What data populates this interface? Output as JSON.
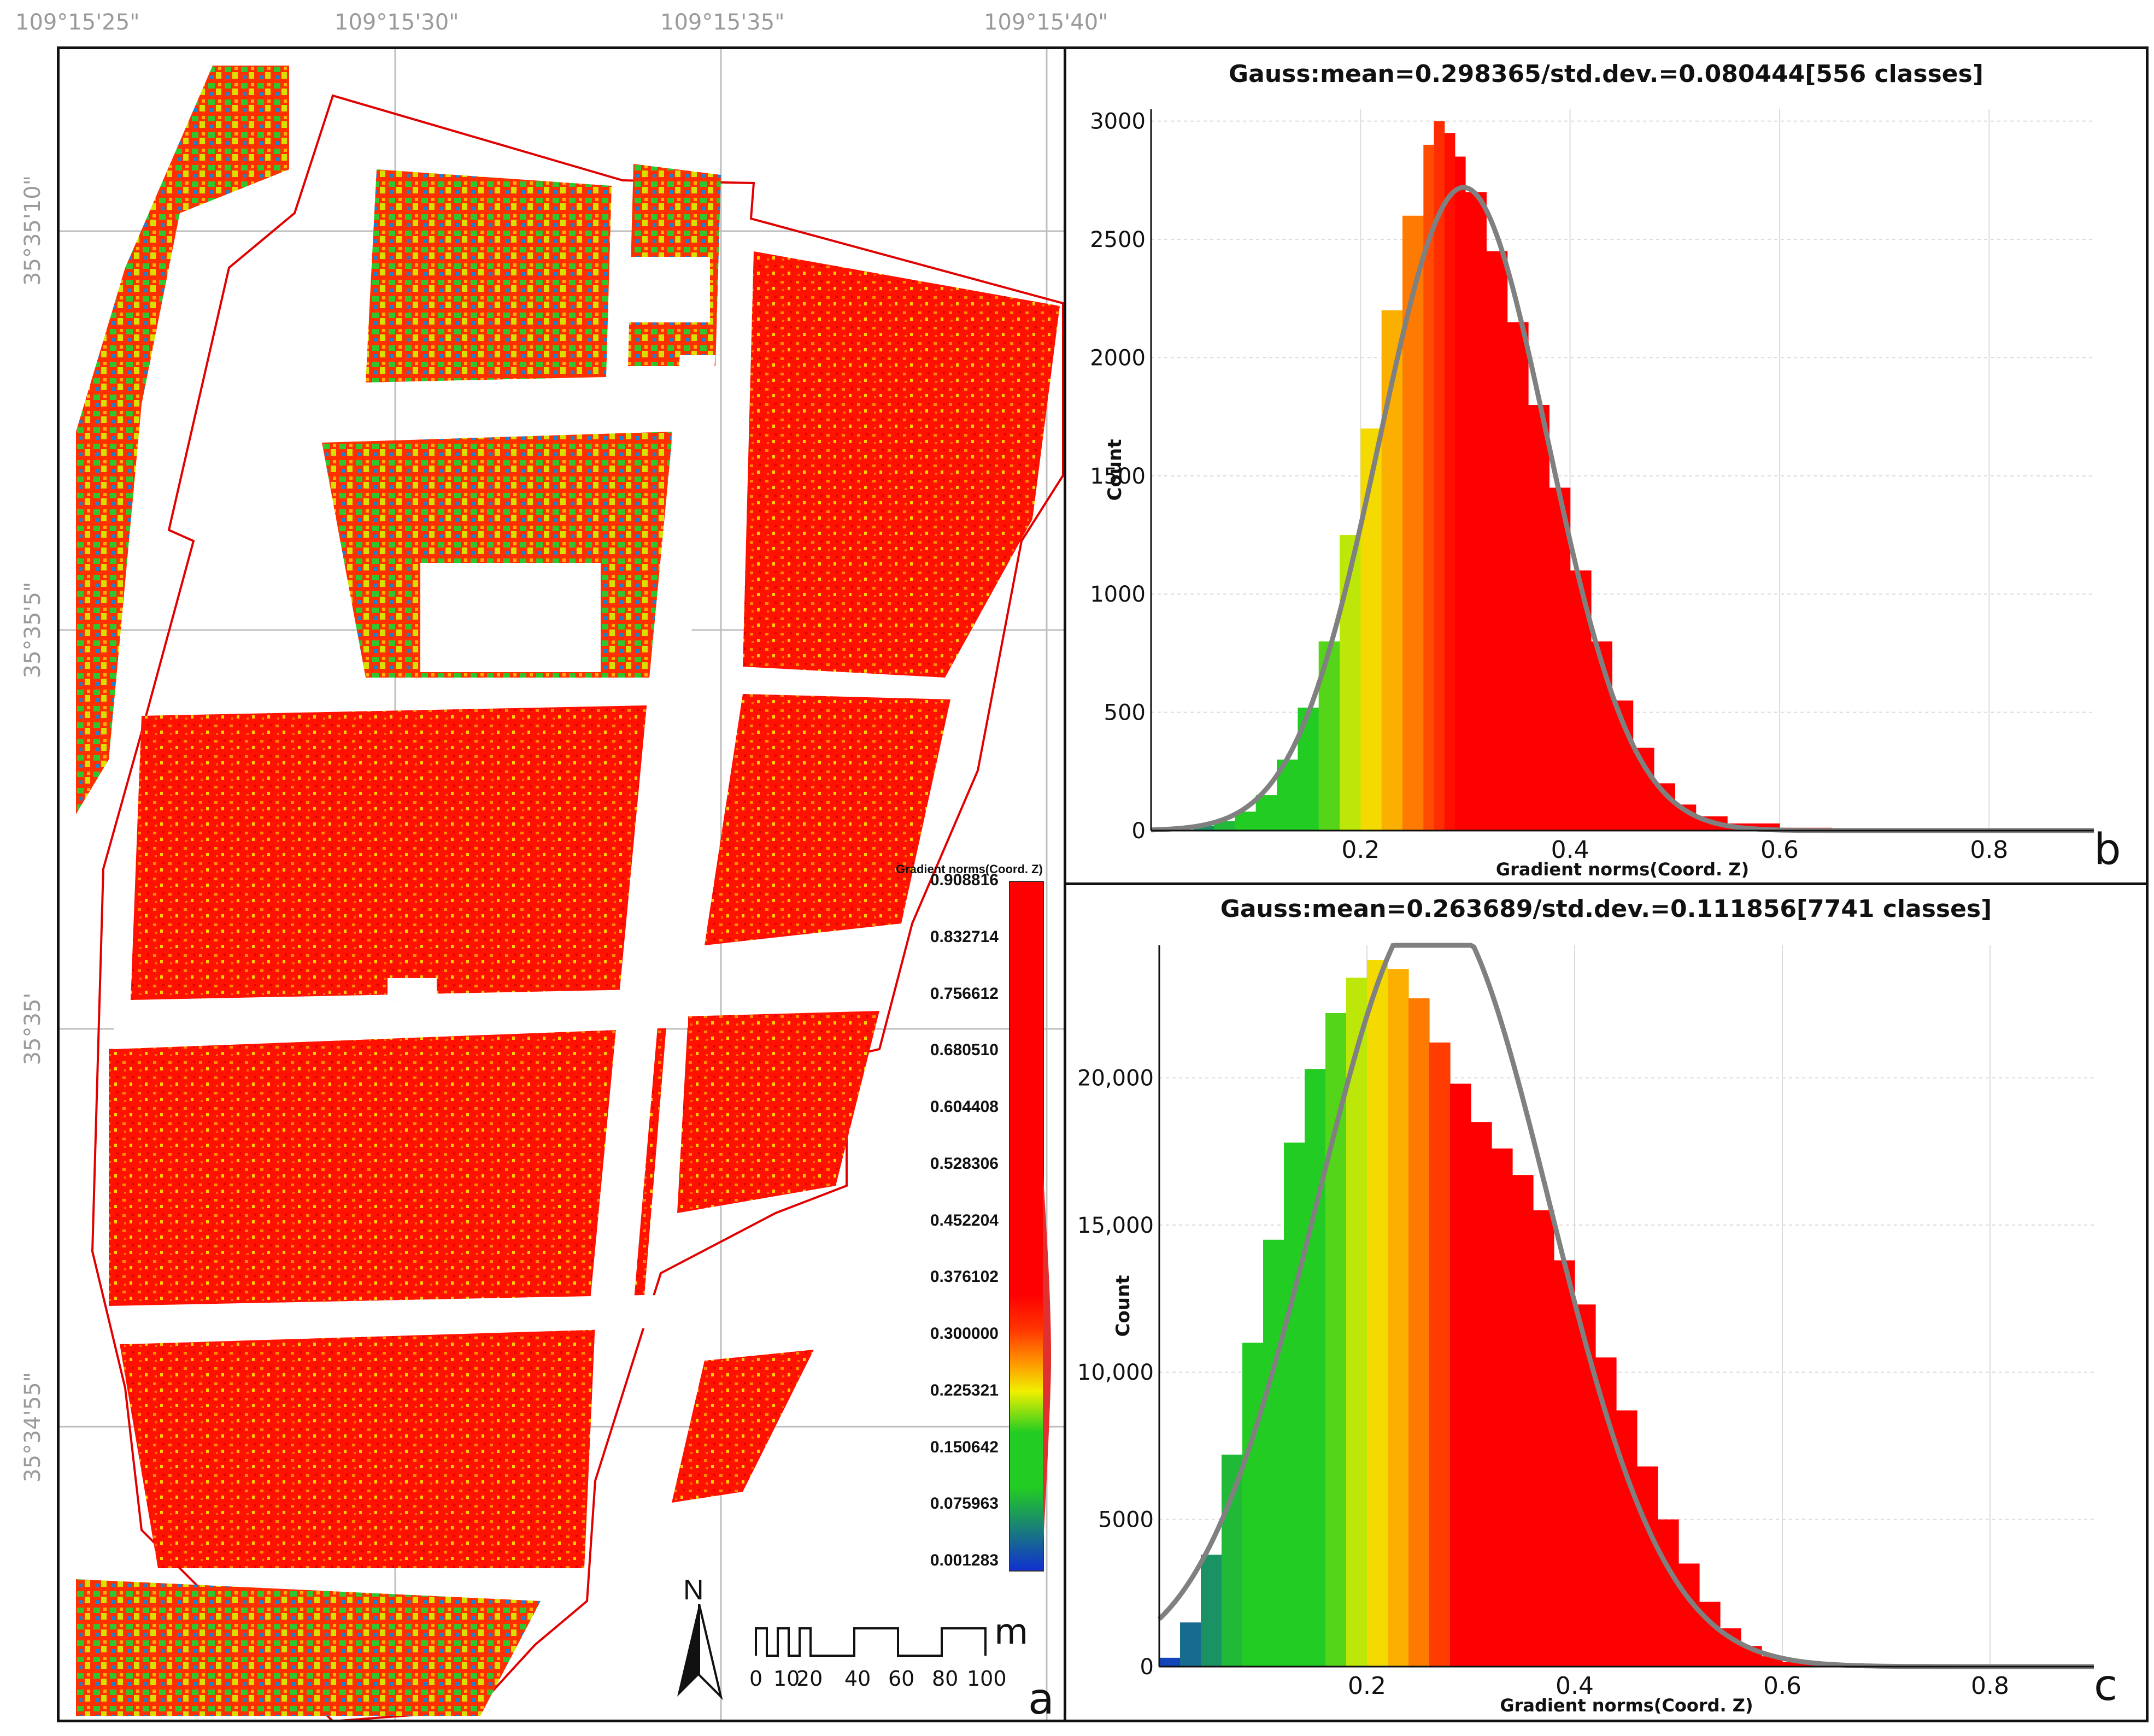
{
  "coords": {
    "longitudes": [
      "109°15'25\"",
      "109°15'30\"",
      "109°15'35\"",
      "109°15'40\""
    ],
    "latitudes": [
      "35°35'10\"",
      "35°35'5\"",
      "35°35'",
      "35°34'55\""
    ]
  },
  "map": {
    "panel_letter": "a",
    "north_label": "N",
    "legend": {
      "title": "Gradient norms(Coord. Z)",
      "values": [
        "0.908816",
        "0.832714",
        "0.756612",
        "0.680510",
        "0.604408",
        "0.528306",
        "0.452204",
        "0.376102",
        "0.300000",
        "0.225321",
        "0.150642",
        "0.075963",
        "0.001283"
      ]
    },
    "scale_bar": {
      "unit": "m",
      "labels": [
        "0",
        "10",
        "20",
        "40",
        "60",
        "80",
        "100"
      ]
    },
    "colors": {
      "low": "#1030d0",
      "mid_low": "#22cc22",
      "mid": "#f0f000",
      "mid_high": "#ff9900",
      "high": "#ff0000",
      "boundary": "#e00000"
    }
  },
  "chart_data": [
    {
      "type": "bar",
      "panel_letter": "b",
      "title": "Gauss:mean=0.298365/std.dev.=0.080444[556 classes]",
      "xlabel": "Gradient norms(Coord. Z)",
      "ylabel": "Count",
      "x_ticks": [
        "0.2",
        "0.4",
        "0.6",
        "0.8"
      ],
      "y_ticks": [
        "0",
        "500",
        "1000",
        "1500",
        "2000",
        "2500",
        "3000"
      ],
      "xlim": [
        0.0,
        0.9
      ],
      "ylim": [
        0,
        3050
      ],
      "gauss": {
        "mean": 0.298365,
        "std": 0.080444,
        "peak": 2720
      },
      "x": [
        0.04,
        0.06,
        0.08,
        0.1,
        0.12,
        0.14,
        0.16,
        0.18,
        0.2,
        0.22,
        0.24,
        0.26,
        0.27,
        0.28,
        0.29,
        0.3,
        0.32,
        0.34,
        0.36,
        0.38,
        0.4,
        0.42,
        0.44,
        0.46,
        0.48,
        0.5,
        0.52,
        0.55,
        0.6,
        0.65,
        0.7
      ],
      "values": [
        20,
        40,
        80,
        150,
        300,
        520,
        800,
        1250,
        1700,
        2200,
        2600,
        2900,
        3000,
        2950,
        2850,
        2700,
        2450,
        2150,
        1800,
        1450,
        1100,
        800,
        550,
        350,
        200,
        110,
        60,
        30,
        12,
        5,
        2
      ]
    },
    {
      "type": "bar",
      "panel_letter": "c",
      "title": "Gauss:mean=0.263689/std.dev.=0.111856[7741 classes]",
      "xlabel": "Gradient norms(Coord. Z)",
      "ylabel": "Count",
      "x_ticks": [
        "0.2",
        "0.4",
        "0.6",
        "0.8"
      ],
      "y_ticks": [
        "0",
        "5000",
        "10,000",
        "15,000",
        "20,000"
      ],
      "xlim": [
        0.0,
        0.9
      ],
      "ylim": [
        0,
        24500
      ],
      "gauss": {
        "mean": 0.263689,
        "std": 0.111856,
        "peak": 26000
      },
      "x": [
        0.0,
        0.02,
        0.04,
        0.06,
        0.08,
        0.1,
        0.12,
        0.14,
        0.16,
        0.18,
        0.2,
        0.22,
        0.24,
        0.26,
        0.28,
        0.3,
        0.32,
        0.34,
        0.36,
        0.38,
        0.4,
        0.42,
        0.44,
        0.46,
        0.48,
        0.5,
        0.52,
        0.54,
        0.56,
        0.58,
        0.6,
        0.65,
        0.7
      ],
      "values": [
        300,
        1500,
        3800,
        7200,
        11000,
        14500,
        17800,
        20300,
        22200,
        23400,
        24000,
        23700,
        22700,
        21200,
        19800,
        18500,
        17600,
        16700,
        15500,
        13800,
        12300,
        10500,
        8700,
        6800,
        5000,
        3500,
        2200,
        1300,
        700,
        350,
        150,
        40,
        10
      ]
    }
  ]
}
